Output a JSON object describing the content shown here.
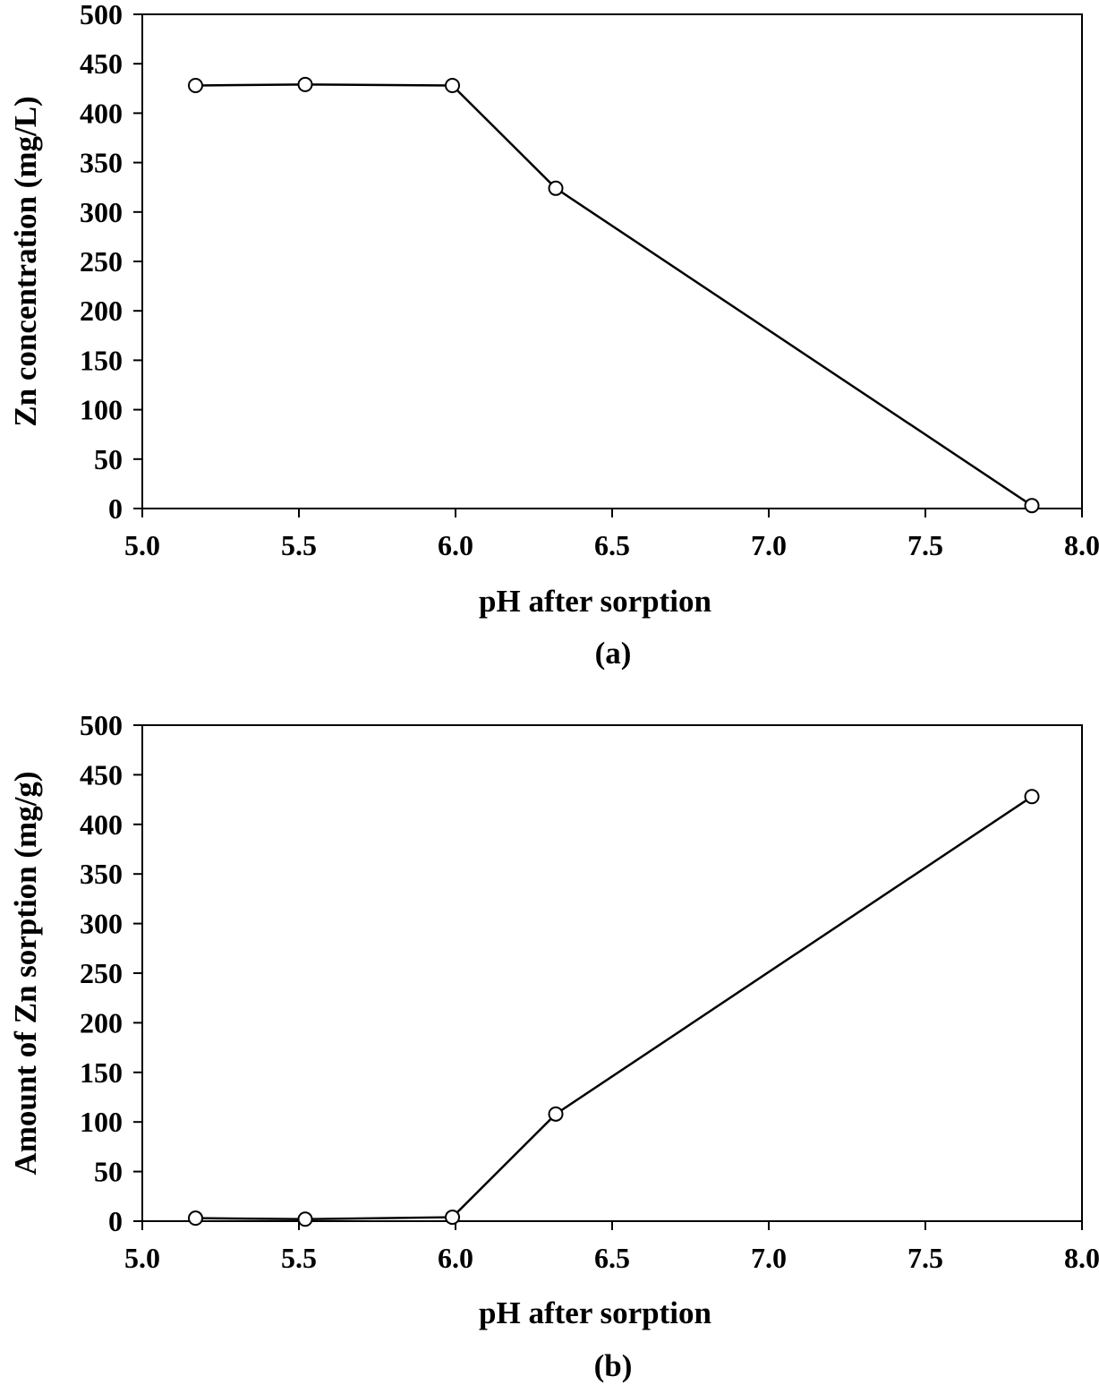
{
  "chart_data": [
    {
      "type": "line",
      "panel_label": "(a)",
      "xlabel": "pH after sorption",
      "ylabel": "Zn concentration (mg/L)",
      "xlim": [
        5.0,
        8.0
      ],
      "ylim": [
        0,
        500
      ],
      "xticks": [
        "5.0",
        "5.5",
        "6.0",
        "6.5",
        "7.0",
        "7.5",
        "8.0"
      ],
      "yticks": [
        "0",
        "50",
        "100",
        "150",
        "200",
        "250",
        "300",
        "350",
        "400",
        "450",
        "500"
      ],
      "grid": false,
      "series": [
        {
          "marker": "open-circle",
          "x": [
            5.17,
            5.52,
            5.99,
            6.32,
            7.84
          ],
          "y": [
            428,
            429,
            428,
            324,
            3
          ]
        }
      ]
    },
    {
      "type": "line",
      "panel_label": "(b)",
      "xlabel": "pH after sorption",
      "ylabel": "Amount of Zn sorption (mg/g)",
      "xlim": [
        5.0,
        8.0
      ],
      "ylim": [
        0,
        500
      ],
      "xticks": [
        "5.0",
        "5.5",
        "6.0",
        "6.5",
        "7.0",
        "7.5",
        "8.0"
      ],
      "yticks": [
        "0",
        "50",
        "100",
        "150",
        "200",
        "250",
        "300",
        "350",
        "400",
        "450",
        "500"
      ],
      "grid": false,
      "series": [
        {
          "marker": "open-circle",
          "x": [
            5.17,
            5.52,
            5.99,
            6.32,
            7.84
          ],
          "y": [
            3,
            2,
            4,
            108,
            428
          ]
        }
      ]
    }
  ]
}
